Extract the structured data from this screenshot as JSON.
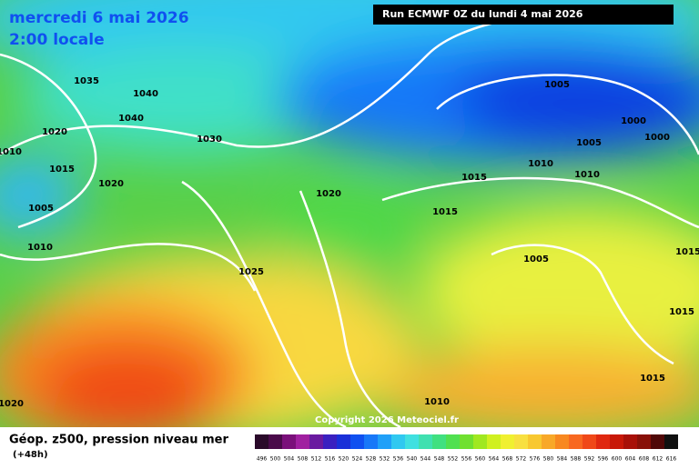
{
  "header": {
    "date": "mercredi 6 mai 2026",
    "time": "2:00 locale",
    "run": "Run ECMWF 0Z du lundi 4 mai 2026"
  },
  "isobars": [
    1035,
    1040,
    1040,
    1020,
    1030,
    1010,
    1015,
    1020,
    1005,
    1020,
    1015,
    1010,
    1025,
    1005,
    1000,
    1000,
    1005,
    1010,
    1015,
    1010,
    1005,
    1015,
    1015,
    1015,
    1010,
    1020
  ],
  "copyright": "Copyright 2026 Meteociel.fr",
  "footer": {
    "title": "Géop. z500, pression niveau mer",
    "lead": "(+48h)"
  },
  "scale": {
    "values": [
      496,
      500,
      504,
      508,
      512,
      516,
      520,
      524,
      528,
      532,
      536,
      540,
      544,
      548,
      552,
      556,
      560,
      564,
      568,
      572,
      576,
      580,
      584,
      588,
      592,
      596,
      600,
      604,
      608,
      612,
      616
    ],
    "colors": [
      "#2a0a2a",
      "#4a0a4a",
      "#7a107a",
      "#a020a0",
      "#6a1aa0",
      "#3a20c0",
      "#1a30d8",
      "#1050f0",
      "#1878f8",
      "#20a0f8",
      "#30c8f0",
      "#40e0e0",
      "#40e0b0",
      "#40e080",
      "#50e050",
      "#70e030",
      "#a0e820",
      "#d0f020",
      "#f0f030",
      "#f8e040",
      "#f8c830",
      "#f8a828",
      "#f88820",
      "#f86820",
      "#f04818",
      "#e02810",
      "#c81808",
      "#a81008",
      "#881008",
      "#500808",
      "#101010"
    ]
  }
}
